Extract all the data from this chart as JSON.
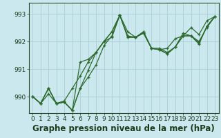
{
  "title": "Graphe pression niveau de la mer (hPa)",
  "bg_color": "#cce8ef",
  "grid_color": "#aacdd6",
  "line_color": "#2d6a2d",
  "ylim": [
    989.4,
    993.4
  ],
  "xlim": [
    -0.5,
    23.5
  ],
  "yticks": [
    990,
    991,
    992,
    993
  ],
  "ytick_labels": [
    "990",
    "991",
    "992",
    "993"
  ],
  "xticks": [
    0,
    1,
    2,
    3,
    4,
    5,
    6,
    7,
    8,
    9,
    10,
    11,
    12,
    13,
    14,
    15,
    16,
    17,
    18,
    19,
    20,
    21,
    22,
    23
  ],
  "series": [
    [
      990.0,
      989.75,
      990.1,
      989.75,
      989.8,
      989.5,
      990.3,
      990.7,
      991.15,
      991.85,
      992.2,
      992.95,
      992.2,
      992.15,
      992.3,
      991.75,
      991.7,
      991.55,
      991.8,
      992.2,
      992.2,
      992.0,
      992.5,
      992.9
    ],
    [
      990.0,
      989.75,
      990.3,
      989.75,
      989.85,
      990.3,
      990.75,
      991.25,
      991.6,
      992.0,
      992.35,
      992.95,
      992.35,
      992.15,
      992.3,
      991.75,
      991.7,
      991.75,
      992.1,
      992.2,
      992.5,
      992.25,
      992.75,
      992.9
    ],
    [
      990.0,
      989.75,
      990.3,
      989.75,
      989.8,
      989.5,
      990.3,
      990.95,
      991.6,
      992.0,
      992.35,
      992.95,
      992.15,
      992.15,
      992.35,
      991.75,
      991.7,
      991.55,
      991.8,
      992.2,
      992.2,
      991.9,
      992.55,
      992.9
    ],
    [
      990.0,
      989.75,
      990.3,
      989.75,
      989.8,
      989.5,
      991.25,
      991.35,
      991.6,
      992.0,
      992.15,
      992.95,
      992.15,
      992.15,
      992.35,
      991.75,
      991.75,
      991.6,
      991.8,
      992.3,
      992.2,
      991.95,
      992.55,
      992.9
    ]
  ],
  "title_fontsize": 8.5,
  "tick_fontsize": 6.5
}
